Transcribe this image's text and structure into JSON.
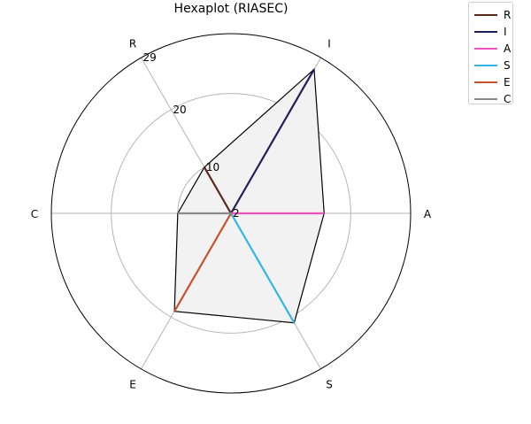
{
  "chart_data": {
    "type": "radar",
    "title": "Hexaplot (RIASEC)",
    "axes": [
      "R",
      "I",
      "A",
      "S",
      "E",
      "C"
    ],
    "radial_ticks": [
      2,
      10,
      20,
      29
    ],
    "rlim": [
      2,
      29
    ],
    "grid": true,
    "legend_position": "top-right",
    "series": [
      {
        "name": "R",
        "value": 10,
        "color": "#5b2a1a"
      },
      {
        "name": "I",
        "value": 27,
        "color": "#1f1f5c"
      },
      {
        "name": "A",
        "value": 16,
        "color": "#f052bd"
      },
      {
        "name": "S",
        "value": 21,
        "color": "#34b6e4"
      },
      {
        "name": "E",
        "value": 19,
        "color": "#c8522e"
      },
      {
        "name": "C",
        "value": 10,
        "color": "#8a8a8a"
      }
    ],
    "polygon_fill": "#f2f2f2",
    "polygon_stroke": "#000000"
  }
}
